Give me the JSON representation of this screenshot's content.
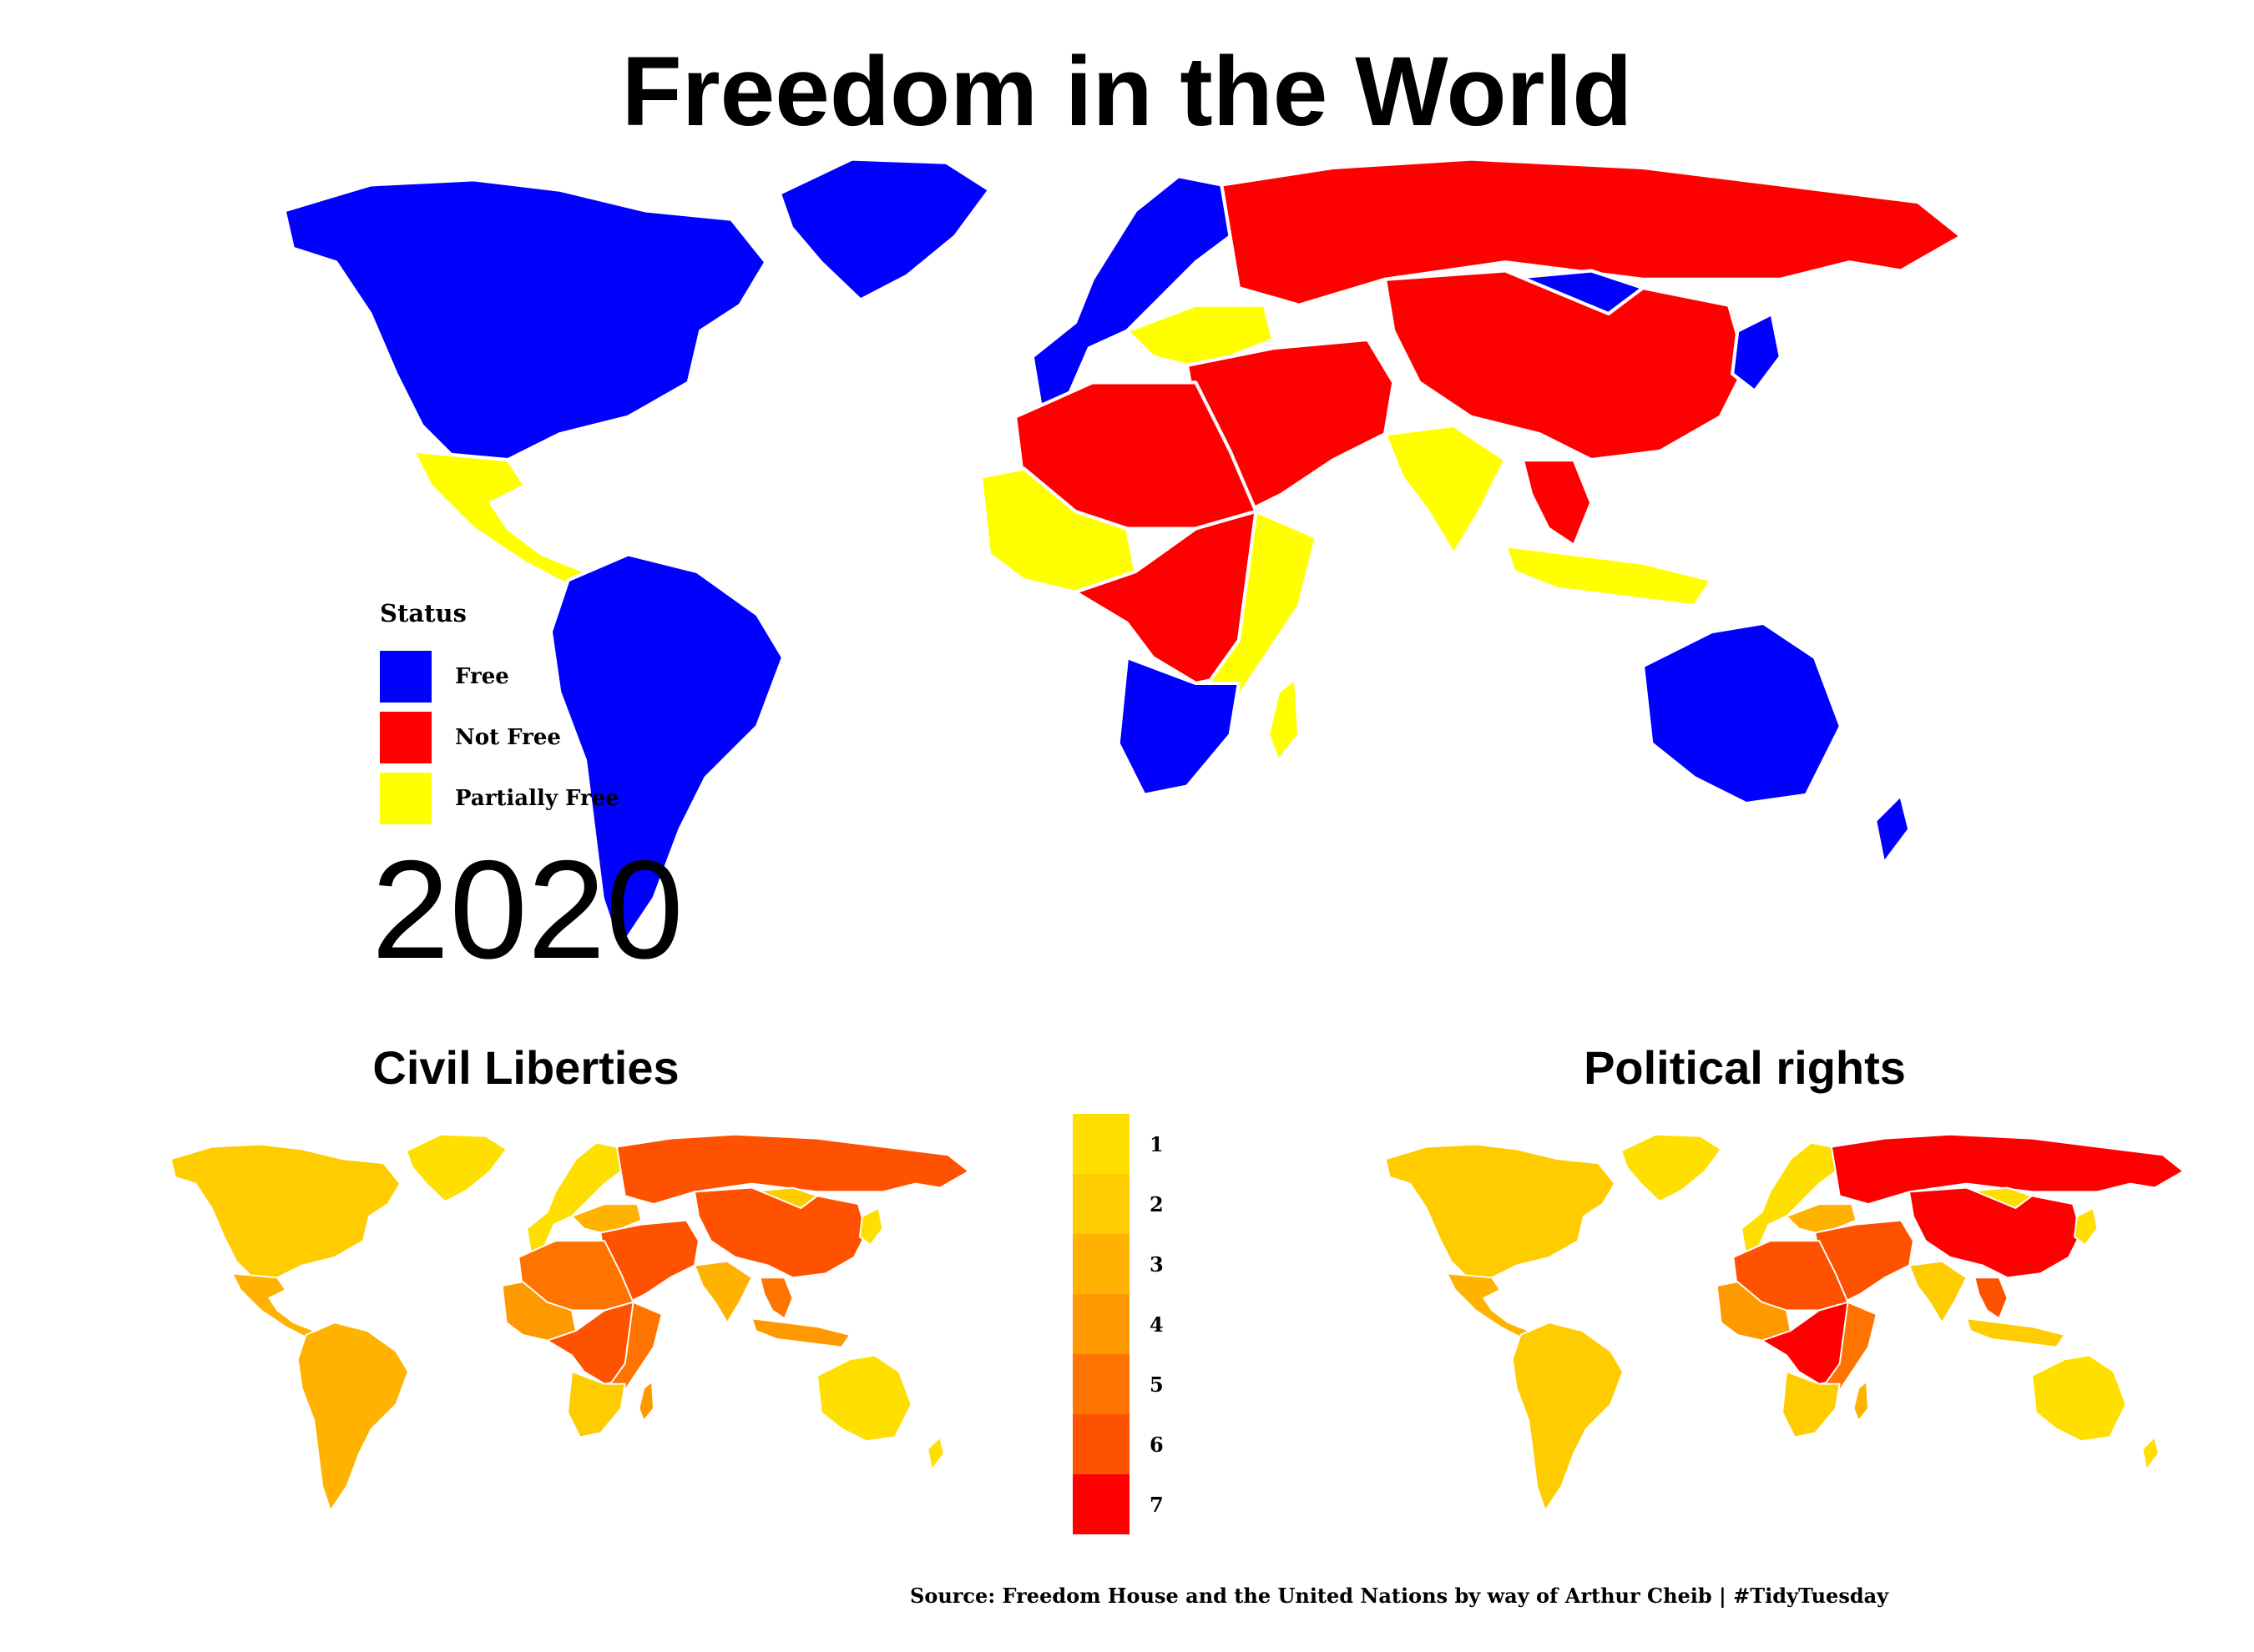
{
  "title": "Freedom in the World",
  "year": "2020",
  "status_legend": {
    "title": "Status",
    "items": [
      {
        "label": "Free",
        "color": "#0000ff"
      },
      {
        "label": "Not Free",
        "color": "#ff0000"
      },
      {
        "label": "Partially Free",
        "color": "#ffff00"
      }
    ]
  },
  "panels": {
    "civil": {
      "title": "Civil Liberties"
    },
    "political": {
      "title": "Political rights"
    }
  },
  "rating_scale": {
    "items": [
      {
        "label": "1",
        "color": "#ffdf00"
      },
      {
        "label": "2",
        "color": "#ffcc00"
      },
      {
        "label": "3",
        "color": "#ffb300"
      },
      {
        "label": "4",
        "color": "#ff9900"
      },
      {
        "label": "5",
        "color": "#ff7300"
      },
      {
        "label": "6",
        "color": "#ff5200"
      },
      {
        "label": "7",
        "color": "#ff0000"
      }
    ]
  },
  "source": "Source: Freedom House and the United Nations by way of Arthur Cheib | #TidyTuesday",
  "regions": {
    "north_america": {
      "status": "Free",
      "civil": 2,
      "political": 2
    },
    "mexico_central_america": {
      "status": "Partially Free",
      "civil": 3,
      "political": 3
    },
    "south_america": {
      "status": "Free",
      "civil": 3,
      "political": 2
    },
    "western_europe": {
      "status": "Free",
      "civil": 1,
      "political": 1
    },
    "eastern_europe": {
      "status": "Partially Free",
      "civil": 3,
      "political": 3
    },
    "russia": {
      "status": "Not Free",
      "civil": 6,
      "political": 7
    },
    "china": {
      "status": "Not Free",
      "civil": 6,
      "political": 7
    },
    "mongolia": {
      "status": "Free",
      "civil": 2,
      "political": 1
    },
    "middle_east": {
      "status": "Not Free",
      "civil": 6,
      "political": 6
    },
    "north_africa": {
      "status": "Not Free",
      "civil": 5,
      "political": 6
    },
    "west_africa": {
      "status": "Partially Free",
      "civil": 4,
      "political": 4
    },
    "central_africa": {
      "status": "Not Free",
      "civil": 6,
      "political": 7
    },
    "east_africa": {
      "status": "Partially Free",
      "civil": 5,
      "political": 5
    },
    "southern_africa": {
      "status": "Free",
      "civil": 2,
      "political": 2
    },
    "madagascar": {
      "status": "Partially Free",
      "civil": 4,
      "political": 3
    },
    "india": {
      "status": "Partially Free",
      "civil": 3,
      "political": 2
    },
    "southeast_asia": {
      "status": "Not Free",
      "civil": 5,
      "political": 6
    },
    "indonesia": {
      "status": "Partially Free",
      "civil": 4,
      "political": 2
    },
    "japan": {
      "status": "Free",
      "civil": 1,
      "political": 1
    },
    "australia": {
      "status": "Free",
      "civil": 1,
      "political": 1
    },
    "new_zealand": {
      "status": "Free",
      "civil": 1,
      "political": 1
    },
    "greenland": {
      "status": "Free",
      "civil": 1,
      "political": 1
    }
  }
}
